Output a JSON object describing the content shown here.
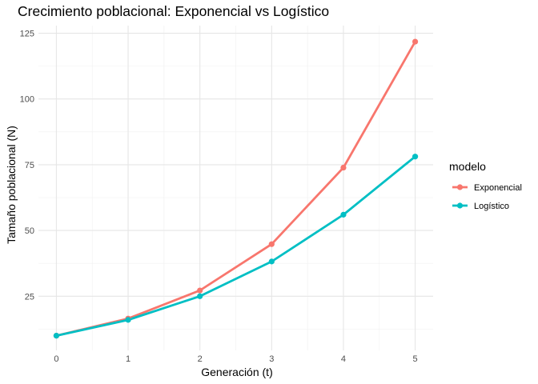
{
  "chart_data": {
    "type": "line",
    "title": "Crecimiento poblacional: Exponencial vs Logístico",
    "xlabel": "Generación (t)",
    "ylabel": "Tamaño poblacional (N)",
    "x": [
      0,
      1,
      2,
      3,
      4,
      5
    ],
    "xlim": [
      -0.25,
      5.25
    ],
    "ylim": [
      4.4,
      127.9
    ],
    "xticks": [
      0,
      1,
      2,
      3,
      4,
      5
    ],
    "yticks": [
      25,
      50,
      75,
      100,
      125
    ],
    "grid": true,
    "legend": {
      "title": "modelo",
      "position": "right"
    },
    "series": [
      {
        "name": "Exponencial",
        "color": "#F8766D",
        "values": [
          10,
          16.5,
          27.2,
          44.8,
          73.9,
          121.8
        ]
      },
      {
        "name": "Logístico",
        "color": "#00BFC4",
        "values": [
          10,
          16,
          25,
          38.2,
          56,
          78.1
        ]
      }
    ]
  }
}
